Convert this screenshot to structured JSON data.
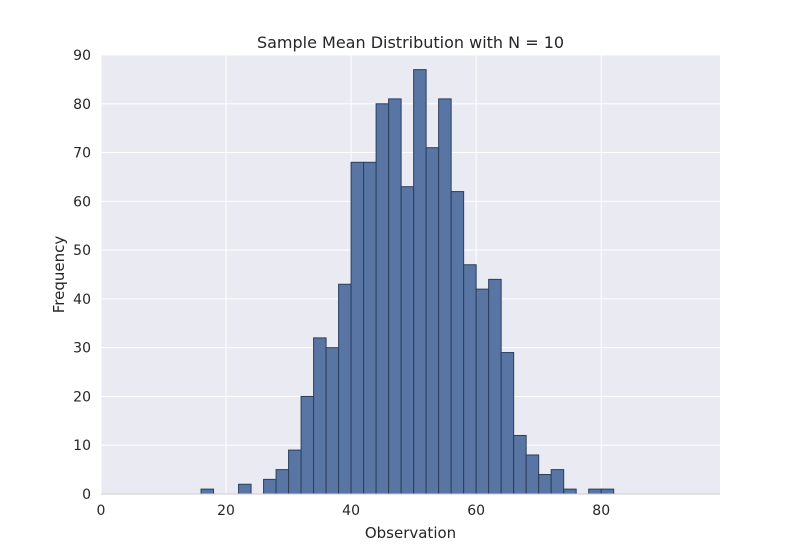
{
  "chart_data": {
    "type": "bar",
    "title": "Sample Mean Distribution with N = 10",
    "xlabel": "Observation",
    "ylabel": "Frequency",
    "xlim": [
      0,
      99
    ],
    "ylim": [
      0,
      90
    ],
    "xticks": [
      0,
      20,
      40,
      60,
      80
    ],
    "yticks": [
      0,
      10,
      20,
      30,
      40,
      50,
      60,
      70,
      80,
      90
    ],
    "grid": true,
    "legend": "none",
    "bar_color": "#5975a4",
    "bar_edge_color": "#2b3f5c",
    "background_color": "#eaeaf2",
    "bins": [
      {
        "x0": 16.0,
        "x1": 18.0,
        "count": 1
      },
      {
        "x0": 22.0,
        "x1": 24.0,
        "count": 2
      },
      {
        "x0": 26.0,
        "x1": 28.0,
        "count": 3
      },
      {
        "x0": 28.0,
        "x1": 30.0,
        "count": 5
      },
      {
        "x0": 30.0,
        "x1": 32.0,
        "count": 9
      },
      {
        "x0": 32.0,
        "x1": 34.0,
        "count": 20
      },
      {
        "x0": 34.0,
        "x1": 36.0,
        "count": 32
      },
      {
        "x0": 36.0,
        "x1": 38.0,
        "count": 30
      },
      {
        "x0": 38.0,
        "x1": 40.0,
        "count": 43
      },
      {
        "x0": 40.0,
        "x1": 42.0,
        "count": 68
      },
      {
        "x0": 42.0,
        "x1": 44.0,
        "count": 68
      },
      {
        "x0": 44.0,
        "x1": 46.0,
        "count": 80
      },
      {
        "x0": 46.0,
        "x1": 48.0,
        "count": 81
      },
      {
        "x0": 48.0,
        "x1": 50.0,
        "count": 63
      },
      {
        "x0": 50.0,
        "x1": 52.0,
        "count": 87
      },
      {
        "x0": 52.0,
        "x1": 54.0,
        "count": 71
      },
      {
        "x0": 54.0,
        "x1": 56.0,
        "count": 81
      },
      {
        "x0": 56.0,
        "x1": 58.0,
        "count": 62
      },
      {
        "x0": 58.0,
        "x1": 60.0,
        "count": 47
      },
      {
        "x0": 60.0,
        "x1": 62.0,
        "count": 42
      },
      {
        "x0": 62.0,
        "x1": 64.0,
        "count": 44
      },
      {
        "x0": 64.0,
        "x1": 66.0,
        "count": 29
      },
      {
        "x0": 66.0,
        "x1": 68.0,
        "count": 12
      },
      {
        "x0": 68.0,
        "x1": 70.0,
        "count": 8
      },
      {
        "x0": 70.0,
        "x1": 72.0,
        "count": 4
      },
      {
        "x0": 72.0,
        "x1": 74.0,
        "count": 5
      },
      {
        "x0": 74.0,
        "x1": 76.0,
        "count": 1
      },
      {
        "x0": 78.0,
        "x1": 80.0,
        "count": 1
      },
      {
        "x0": 80.0,
        "x1": 82.0,
        "count": 1
      }
    ]
  }
}
